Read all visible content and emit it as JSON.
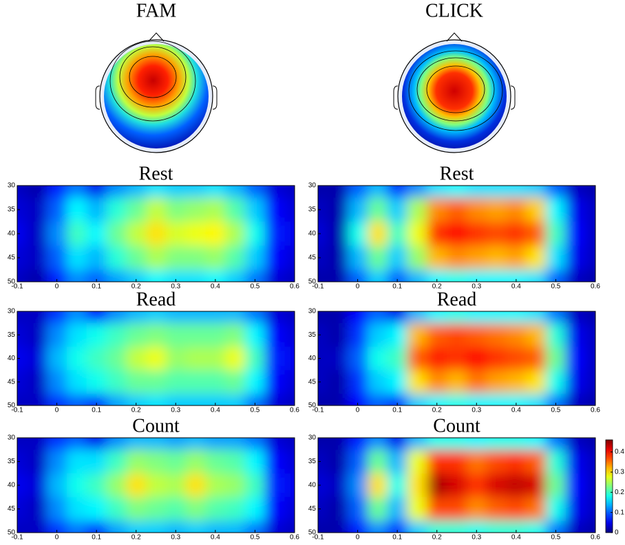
{
  "column_titles": [
    "FAM",
    "CLICK"
  ],
  "chart_data": [
    {
      "type": "heatmap",
      "title": "Rest",
      "x": [
        -0.1,
        -0.05,
        0,
        0.05,
        0.1,
        0.15,
        0.2,
        0.25,
        0.3,
        0.35,
        0.4,
        0.45,
        0.5,
        0.55,
        0.6
      ],
      "y": [
        30,
        35,
        40,
        45,
        50
      ],
      "values": [
        [
          0.03,
          0.02,
          0.07,
          0.11,
          0.05,
          0.12,
          0.14,
          0.16,
          0.15,
          0.15,
          0.16,
          0.14,
          0.1,
          0.04,
          0.03
        ],
        [
          0.04,
          0.03,
          0.1,
          0.17,
          0.14,
          0.19,
          0.22,
          0.26,
          0.23,
          0.24,
          0.25,
          0.21,
          0.15,
          0.06,
          0.04
        ],
        [
          0.05,
          0.03,
          0.12,
          0.2,
          0.17,
          0.22,
          0.26,
          0.3,
          0.27,
          0.28,
          0.29,
          0.25,
          0.18,
          0.07,
          0.05
        ],
        [
          0.04,
          0.03,
          0.1,
          0.16,
          0.14,
          0.19,
          0.22,
          0.25,
          0.23,
          0.23,
          0.24,
          0.21,
          0.15,
          0.06,
          0.04
        ],
        [
          0.03,
          0.02,
          0.07,
          0.12,
          0.1,
          0.13,
          0.15,
          0.17,
          0.16,
          0.16,
          0.17,
          0.15,
          0.11,
          0.04,
          0.03
        ]
      ],
      "xlim": [
        -0.1,
        0.6
      ],
      "ylim": [
        30,
        50
      ],
      "y_reversed": true,
      "xticks": [
        -0.1,
        0,
        0.1,
        0.2,
        0.3,
        0.4,
        0.5,
        0.6
      ],
      "yticks": [
        30,
        35,
        40,
        45,
        50
      ]
    },
    {
      "type": "heatmap",
      "title": "Rest",
      "x": [
        -0.1,
        -0.05,
        0,
        0.05,
        0.1,
        0.15,
        0.2,
        0.25,
        0.3,
        0.35,
        0.4,
        0.45,
        0.5,
        0.55,
        0.6
      ],
      "y": [
        30,
        35,
        40,
        45,
        50
      ],
      "values": [
        [
          0.02,
          0.02,
          0.1,
          0.14,
          0.08,
          0.12,
          0.16,
          0.17,
          0.16,
          0.16,
          0.16,
          0.15,
          0.1,
          0.03,
          0.02
        ],
        [
          0.03,
          0.02,
          0.14,
          0.22,
          0.15,
          0.25,
          0.34,
          0.36,
          0.34,
          0.33,
          0.34,
          0.31,
          0.17,
          0.05,
          0.03
        ],
        [
          0.04,
          0.02,
          0.18,
          0.3,
          0.2,
          0.28,
          0.38,
          0.4,
          0.38,
          0.37,
          0.38,
          0.36,
          0.2,
          0.06,
          0.03
        ],
        [
          0.03,
          0.02,
          0.14,
          0.22,
          0.15,
          0.24,
          0.32,
          0.34,
          0.33,
          0.32,
          0.33,
          0.3,
          0.16,
          0.05,
          0.03
        ],
        [
          0.02,
          0.02,
          0.1,
          0.15,
          0.1,
          0.14,
          0.17,
          0.18,
          0.17,
          0.17,
          0.17,
          0.16,
          0.1,
          0.03,
          0.02
        ]
      ],
      "xlim": [
        -0.1,
        0.6
      ],
      "ylim": [
        30,
        50
      ],
      "y_reversed": true,
      "xticks": [
        -0.1,
        0,
        0.1,
        0.2,
        0.3,
        0.4,
        0.5,
        0.6
      ],
      "yticks": [
        30,
        35,
        40,
        45,
        50
      ]
    },
    {
      "type": "heatmap",
      "title": "Read",
      "x": [
        -0.1,
        -0.05,
        0,
        0.05,
        0.1,
        0.15,
        0.2,
        0.25,
        0.3,
        0.35,
        0.4,
        0.45,
        0.5,
        0.55,
        0.6
      ],
      "y": [
        30,
        35,
        40,
        45,
        50
      ],
      "values": [
        [
          0.03,
          0.03,
          0.08,
          0.12,
          0.06,
          0.12,
          0.14,
          0.15,
          0.14,
          0.14,
          0.14,
          0.14,
          0.11,
          0.04,
          0.03
        ],
        [
          0.04,
          0.03,
          0.12,
          0.16,
          0.18,
          0.2,
          0.22,
          0.23,
          0.22,
          0.22,
          0.22,
          0.23,
          0.17,
          0.06,
          0.04
        ],
        [
          0.05,
          0.04,
          0.14,
          0.18,
          0.2,
          0.22,
          0.26,
          0.28,
          0.24,
          0.25,
          0.25,
          0.28,
          0.2,
          0.07,
          0.05
        ],
        [
          0.04,
          0.03,
          0.12,
          0.16,
          0.18,
          0.2,
          0.22,
          0.22,
          0.21,
          0.21,
          0.21,
          0.22,
          0.17,
          0.06,
          0.04
        ],
        [
          0.03,
          0.03,
          0.08,
          0.1,
          0.08,
          0.13,
          0.15,
          0.16,
          0.15,
          0.15,
          0.15,
          0.15,
          0.11,
          0.04,
          0.03
        ]
      ],
      "xlim": [
        -0.1,
        0.6
      ],
      "ylim": [
        30,
        50
      ],
      "y_reversed": true,
      "xticks": [
        -0.1,
        0,
        0.1,
        0.2,
        0.3,
        0.4,
        0.5,
        0.6
      ],
      "yticks": [
        30,
        35,
        40,
        45,
        50
      ]
    },
    {
      "type": "heatmap",
      "title": "Read",
      "x": [
        -0.1,
        -0.05,
        0,
        0.05,
        0.1,
        0.15,
        0.2,
        0.25,
        0.3,
        0.35,
        0.4,
        0.45,
        0.5,
        0.55,
        0.6
      ],
      "y": [
        30,
        35,
        40,
        45,
        50
      ],
      "values": [
        [
          0.02,
          0.02,
          0.06,
          0.1,
          0.05,
          0.14,
          0.17,
          0.18,
          0.17,
          0.17,
          0.17,
          0.16,
          0.11,
          0.03,
          0.02
        ],
        [
          0.03,
          0.02,
          0.08,
          0.15,
          0.17,
          0.32,
          0.36,
          0.37,
          0.36,
          0.35,
          0.34,
          0.32,
          0.19,
          0.05,
          0.03
        ],
        [
          0.03,
          0.03,
          0.1,
          0.18,
          0.2,
          0.36,
          0.39,
          0.38,
          0.4,
          0.38,
          0.37,
          0.36,
          0.22,
          0.06,
          0.03
        ],
        [
          0.03,
          0.02,
          0.08,
          0.15,
          0.17,
          0.3,
          0.34,
          0.32,
          0.35,
          0.33,
          0.32,
          0.3,
          0.18,
          0.05,
          0.03
        ],
        [
          0.02,
          0.02,
          0.06,
          0.1,
          0.08,
          0.15,
          0.17,
          0.18,
          0.17,
          0.17,
          0.17,
          0.16,
          0.11,
          0.03,
          0.02
        ]
      ],
      "xlim": [
        -0.1,
        0.6
      ],
      "ylim": [
        30,
        50
      ],
      "y_reversed": true,
      "xticks": [
        -0.1,
        0,
        0.1,
        0.2,
        0.3,
        0.4,
        0.5,
        0.6
      ],
      "yticks": [
        30,
        35,
        40,
        45,
        50
      ]
    },
    {
      "type": "heatmap",
      "title": "Count",
      "x": [
        -0.1,
        -0.05,
        0,
        0.05,
        0.1,
        0.15,
        0.2,
        0.25,
        0.3,
        0.35,
        0.4,
        0.45,
        0.5,
        0.55,
        0.6
      ],
      "y": [
        30,
        35,
        40,
        45,
        50
      ],
      "values": [
        [
          0.03,
          0.03,
          0.08,
          0.1,
          0.05,
          0.12,
          0.14,
          0.14,
          0.13,
          0.14,
          0.13,
          0.13,
          0.11,
          0.04,
          0.03
        ],
        [
          0.04,
          0.03,
          0.12,
          0.16,
          0.16,
          0.2,
          0.24,
          0.23,
          0.22,
          0.24,
          0.22,
          0.21,
          0.17,
          0.06,
          0.04
        ],
        [
          0.05,
          0.04,
          0.14,
          0.18,
          0.2,
          0.24,
          0.3,
          0.26,
          0.25,
          0.3,
          0.25,
          0.24,
          0.2,
          0.07,
          0.05
        ],
        [
          0.04,
          0.03,
          0.12,
          0.16,
          0.17,
          0.2,
          0.23,
          0.22,
          0.21,
          0.23,
          0.21,
          0.2,
          0.17,
          0.06,
          0.04
        ],
        [
          0.03,
          0.03,
          0.08,
          0.11,
          0.08,
          0.13,
          0.15,
          0.15,
          0.14,
          0.15,
          0.14,
          0.14,
          0.11,
          0.04,
          0.03
        ]
      ],
      "xlim": [
        -0.1,
        0.6
      ],
      "ylim": [
        30,
        50
      ],
      "y_reversed": true,
      "xticks": [
        -0.1,
        0,
        0.1,
        0.2,
        0.3,
        0.4,
        0.5,
        0.6
      ],
      "yticks": [
        30,
        35,
        40,
        45,
        50
      ]
    },
    {
      "type": "heatmap",
      "title": "Count",
      "x": [
        -0.1,
        -0.05,
        0,
        0.05,
        0.1,
        0.15,
        0.2,
        0.25,
        0.3,
        0.35,
        0.4,
        0.45,
        0.5,
        0.55,
        0.6
      ],
      "y": [
        30,
        35,
        40,
        45,
        50
      ],
      "values": [
        [
          0.02,
          0.02,
          0.07,
          0.12,
          0.05,
          0.14,
          0.18,
          0.18,
          0.17,
          0.18,
          0.18,
          0.17,
          0.11,
          0.03,
          0.02
        ],
        [
          0.03,
          0.02,
          0.1,
          0.22,
          0.14,
          0.28,
          0.38,
          0.38,
          0.35,
          0.37,
          0.38,
          0.36,
          0.19,
          0.05,
          0.03
        ],
        [
          0.04,
          0.03,
          0.12,
          0.3,
          0.18,
          0.3,
          0.44,
          0.42,
          0.38,
          0.42,
          0.43,
          0.42,
          0.22,
          0.06,
          0.03
        ],
        [
          0.03,
          0.02,
          0.1,
          0.22,
          0.14,
          0.28,
          0.37,
          0.37,
          0.34,
          0.36,
          0.37,
          0.35,
          0.18,
          0.05,
          0.03
        ],
        [
          0.02,
          0.02,
          0.07,
          0.12,
          0.08,
          0.15,
          0.19,
          0.19,
          0.18,
          0.19,
          0.19,
          0.18,
          0.11,
          0.03,
          0.02
        ]
      ],
      "xlim": [
        -0.1,
        0.6
      ],
      "ylim": [
        30,
        50
      ],
      "y_reversed": true,
      "xticks": [
        -0.1,
        0,
        0.1,
        0.2,
        0.3,
        0.4,
        0.5,
        0.6
      ],
      "yticks": [
        30,
        35,
        40,
        45,
        50
      ]
    }
  ],
  "colorbar": {
    "clim": [
      0,
      0.46
    ],
    "ticks": [
      0,
      0.1,
      0.2,
      0.3,
      0.4
    ]
  }
}
